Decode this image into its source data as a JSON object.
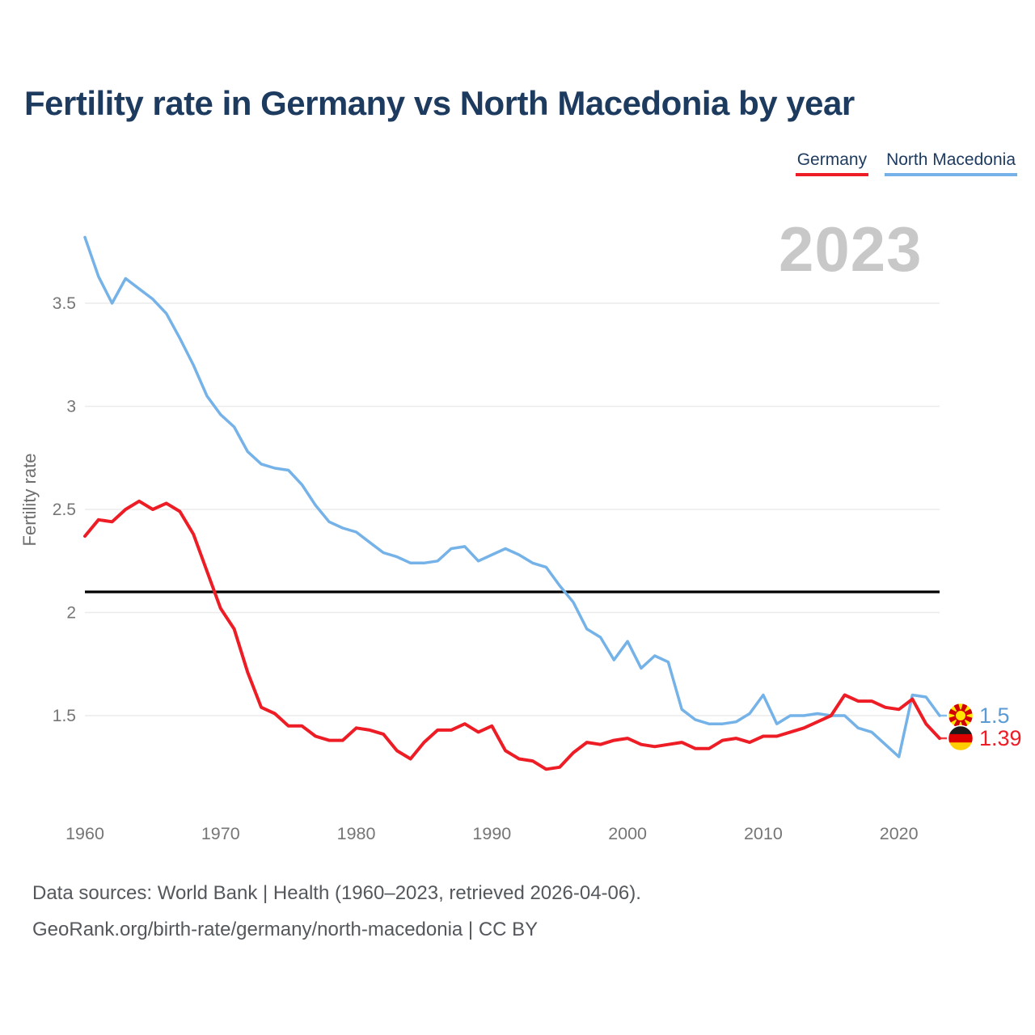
{
  "header": {
    "title": "Fertility rate in Germany vs North Macedonia by year"
  },
  "legend": {
    "items": [
      {
        "label": "Germany",
        "color": "#ee1c25"
      },
      {
        "label": "North Macedonia",
        "color": "#74b2e8"
      }
    ]
  },
  "watermark": {
    "year": "2023"
  },
  "chart_data": {
    "type": "line",
    "title": "Fertility rate in Germany vs North Macedonia by year",
    "ylabel": "Fertility rate",
    "xlabel": "",
    "x_start_year": 1960,
    "x_end_year": 2023,
    "x_ticks": [
      1960,
      1970,
      1980,
      1990,
      2000,
      2010,
      2020
    ],
    "y_ticks": [
      1.5,
      2,
      2.5,
      3,
      3.5
    ],
    "ylim": [
      1.1,
      3.9
    ],
    "grid": "horizontal-only",
    "legend_position": "top-right",
    "reference_line": {
      "value": 2.1,
      "color": "#000000"
    },
    "series": [
      {
        "name": "North Macedonia",
        "color": "#74b2e8",
        "end_label": "1.5",
        "end_label_color": "#5b9bd5",
        "flag": "north-macedonia",
        "values": [
          3.82,
          3.63,
          3.5,
          3.62,
          3.57,
          3.52,
          3.45,
          3.33,
          3.2,
          3.05,
          2.96,
          2.9,
          2.78,
          2.72,
          2.7,
          2.69,
          2.62,
          2.52,
          2.44,
          2.41,
          2.39,
          2.34,
          2.29,
          2.27,
          2.24,
          2.24,
          2.25,
          2.31,
          2.32,
          2.25,
          2.28,
          2.31,
          2.28,
          2.24,
          2.22,
          2.13,
          2.05,
          1.92,
          1.88,
          1.77,
          1.86,
          1.73,
          1.79,
          1.76,
          1.53,
          1.48,
          1.46,
          1.46,
          1.47,
          1.51,
          1.6,
          1.46,
          1.5,
          1.5,
          1.51,
          1.5,
          1.5,
          1.44,
          1.42,
          1.36,
          1.3,
          1.6,
          1.59,
          1.5
        ]
      },
      {
        "name": "Germany",
        "color": "#ee1c25",
        "end_label": "1.39",
        "end_label_color": "#ee1c25",
        "flag": "germany",
        "values": [
          2.37,
          2.45,
          2.44,
          2.5,
          2.54,
          2.5,
          2.53,
          2.49,
          2.38,
          2.2,
          2.02,
          1.92,
          1.71,
          1.54,
          1.51,
          1.45,
          1.45,
          1.4,
          1.38,
          1.38,
          1.44,
          1.43,
          1.41,
          1.33,
          1.29,
          1.37,
          1.43,
          1.43,
          1.46,
          1.42,
          1.45,
          1.33,
          1.29,
          1.28,
          1.24,
          1.25,
          1.32,
          1.37,
          1.36,
          1.38,
          1.39,
          1.36,
          1.35,
          1.36,
          1.37,
          1.34,
          1.34,
          1.38,
          1.39,
          1.37,
          1.4,
          1.4,
          1.42,
          1.44,
          1.47,
          1.5,
          1.6,
          1.57,
          1.57,
          1.54,
          1.53,
          1.58,
          1.46,
          1.39
        ]
      }
    ],
    "flag_colors": {
      "north-macedonia": {
        "base": "#d20000",
        "sun": "#ffe600"
      },
      "germany": {
        "bands": [
          "#1a1a1a",
          "#dd0000",
          "#ffce00"
        ]
      }
    }
  },
  "footer": {
    "line1": "Data sources: World Bank | Health (1960–2023, retrieved 2026-04-06).",
    "line2": "GeoRank.org/birth-rate/germany/north-macedonia | CC BY"
  }
}
